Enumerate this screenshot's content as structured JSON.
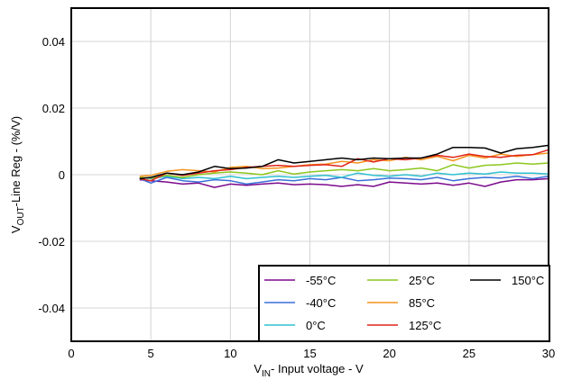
{
  "chart_data": {
    "type": "line",
    "xlabel": {
      "pre": "V",
      "sub": "IN",
      "post": "- Input voltage - V"
    },
    "ylabel": {
      "pre": "V",
      "sub": "OUT",
      "post": "-Line Reg - (%/V)"
    },
    "xlim": [
      0,
      30
    ],
    "ylim": [
      -0.05,
      0.05
    ],
    "xticks": [
      0,
      5,
      10,
      15,
      20,
      25,
      30
    ],
    "yticks": [
      -0.04,
      -0.02,
      0,
      0.02,
      0.04
    ],
    "ytick_labels": [
      "-0.04",
      "-0.02",
      "0",
      "0.02",
      "0.04"
    ],
    "grid": true,
    "legend_position": "bottom-right",
    "x": [
      4.3,
      5,
      6,
      7,
      8,
      9,
      10,
      11,
      12,
      13,
      14,
      15,
      16,
      17,
      18,
      19,
      20,
      21,
      22,
      23,
      24,
      25,
      26,
      27,
      28,
      29,
      30
    ],
    "series": [
      {
        "name": "-55°C",
        "color": "#7b0a8c",
        "values": [
          -0.0015,
          -0.0018,
          -0.0022,
          -0.0028,
          -0.0025,
          -0.0038,
          -0.0028,
          -0.0032,
          -0.0028,
          -0.0025,
          -0.003,
          -0.0028,
          -0.003,
          -0.0035,
          -0.003,
          -0.0035,
          -0.0022,
          -0.0025,
          -0.0028,
          -0.0025,
          -0.0032,
          -0.0025,
          -0.0035,
          -0.0022,
          -0.0015,
          -0.0015,
          -0.0012
        ]
      },
      {
        "name": "-40°C",
        "color": "#3a6fd8",
        "values": [
          -0.0012,
          -0.0025,
          -0.0008,
          -0.0018,
          -0.0022,
          -0.0015,
          -0.0018,
          -0.0028,
          -0.0022,
          -0.0015,
          -0.0018,
          -0.0012,
          -0.0015,
          -0.0008,
          -0.0018,
          -0.0015,
          -0.001,
          -0.0012,
          -0.0015,
          -0.0008,
          -0.0018,
          -0.0012,
          -0.0008,
          -0.001,
          -0.0005,
          -0.0012,
          -0.0005
        ]
      },
      {
        "name": "0°C",
        "color": "#2ec0d0",
        "values": [
          -0.0008,
          -0.0012,
          -0.0005,
          -0.0012,
          -0.0008,
          -0.0012,
          -0.0005,
          -0.0012,
          -0.0008,
          -0.0005,
          -0.0008,
          -0.0005,
          -0.0002,
          -0.0008,
          0.0005,
          -0.0002,
          -0.0005,
          0.0,
          -0.0005,
          0.0005,
          0.0,
          0.0005,
          0.0002,
          0.0008,
          0.0005,
          0.0005,
          0.0002
        ]
      },
      {
        "name": "25°C",
        "color": "#8cc71e",
        "values": [
          -0.0008,
          -0.001,
          -0.0002,
          -0.0008,
          0.0,
          0.0005,
          0.0008,
          0.0005,
          0.0,
          0.0012,
          0.0002,
          0.0008,
          0.0012,
          0.0015,
          0.0012,
          0.0018,
          0.0012,
          0.0015,
          0.002,
          0.0012,
          0.003,
          0.002,
          0.0028,
          0.003,
          0.0035,
          0.0032,
          0.0035
        ]
      },
      {
        "name": "85°C",
        "color": "#f5941e",
        "values": [
          -0.0005,
          -0.0002,
          0.001,
          0.0015,
          0.0012,
          0.0008,
          0.0022,
          0.0025,
          0.0018,
          0.002,
          0.0025,
          0.003,
          0.0032,
          0.004,
          0.0035,
          0.0045,
          0.0042,
          0.0052,
          0.0045,
          0.0055,
          0.0042,
          0.0058,
          0.005,
          0.0062,
          0.0055,
          0.006,
          0.0065
        ]
      },
      {
        "name": "125°C",
        "color": "#e02418",
        "values": [
          -0.0012,
          -0.0018,
          0.0005,
          -0.0002,
          0.0005,
          0.0012,
          0.0015,
          0.0022,
          0.0025,
          0.0028,
          0.0025,
          0.0028,
          0.003,
          0.0025,
          0.0048,
          0.0038,
          0.0048,
          0.0045,
          0.005,
          0.0058,
          0.0052,
          0.0062,
          0.0055,
          0.0052,
          0.0058,
          0.006,
          0.0075
        ]
      },
      {
        "name": "150°C",
        "color": "#000000",
        "values": [
          -0.0012,
          -0.0008,
          0.0005,
          0.0,
          0.0008,
          0.0025,
          0.0018,
          0.002,
          0.0025,
          0.0045,
          0.0035,
          0.004,
          0.0045,
          0.005,
          0.0045,
          0.005,
          0.0048,
          0.005,
          0.005,
          0.0062,
          0.0082,
          0.0082,
          0.008,
          0.0065,
          0.0078,
          0.0082,
          0.0088
        ]
      }
    ]
  }
}
